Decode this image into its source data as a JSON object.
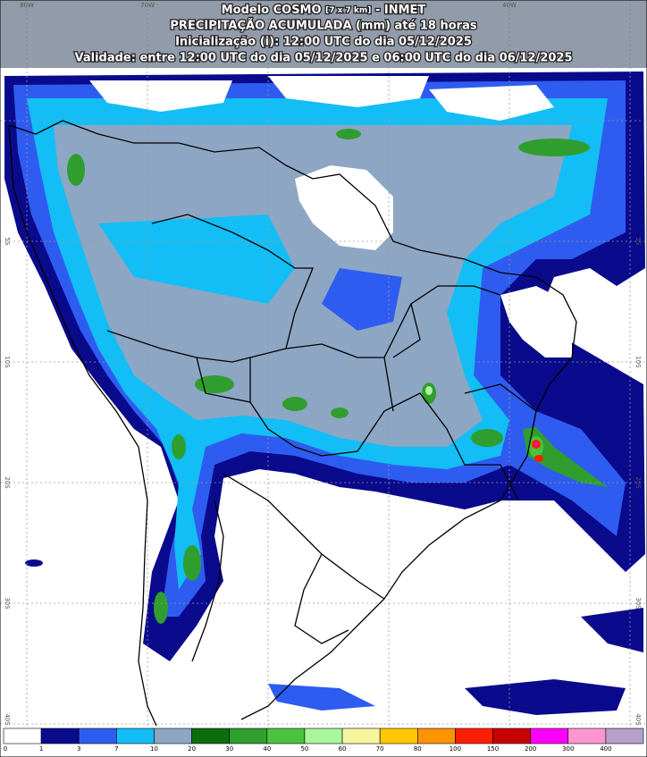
{
  "header": {
    "line1": {
      "model": "Modelo COSMO",
      "resolution": "[7 x 7 km]",
      "source": "- INMET"
    },
    "line2": "PRECIPITAÇÃO ACUMULADA (mm) até 18 horas",
    "line3": "Inicialização (i): 12:00 UTC do dia 05/12/2025",
    "line4": "Validade: entre 12:00 UTC do dia 05/12/2025 e 06:00 UTC do dia 06/12/2025"
  },
  "longitude_labels": [
    "80W",
    "70W",
    "40W"
  ],
  "latitude_labels": [
    "5S",
    "10S",
    "20S",
    "30S",
    "40S"
  ],
  "colorbar": {
    "labels": [
      "0",
      "1",
      "3",
      "7",
      "10",
      "20",
      "30",
      "40",
      "50",
      "60",
      "70",
      "80",
      "100",
      "150",
      "200",
      "300",
      "400"
    ],
    "colors": [
      "#ffffff",
      "#0a0a8c",
      "#2f5cf0",
      "#12bef5",
      "#8da6c4",
      "#0b6e0b",
      "#2f9e2f",
      "#4cc23c",
      "#a8f59a",
      "#f5f5a0",
      "#ffc800",
      "#ff9400",
      "#ff1e00",
      "#c80000",
      "#ff00ff",
      "#ff96d2",
      "#b4a0c8"
    ]
  }
}
